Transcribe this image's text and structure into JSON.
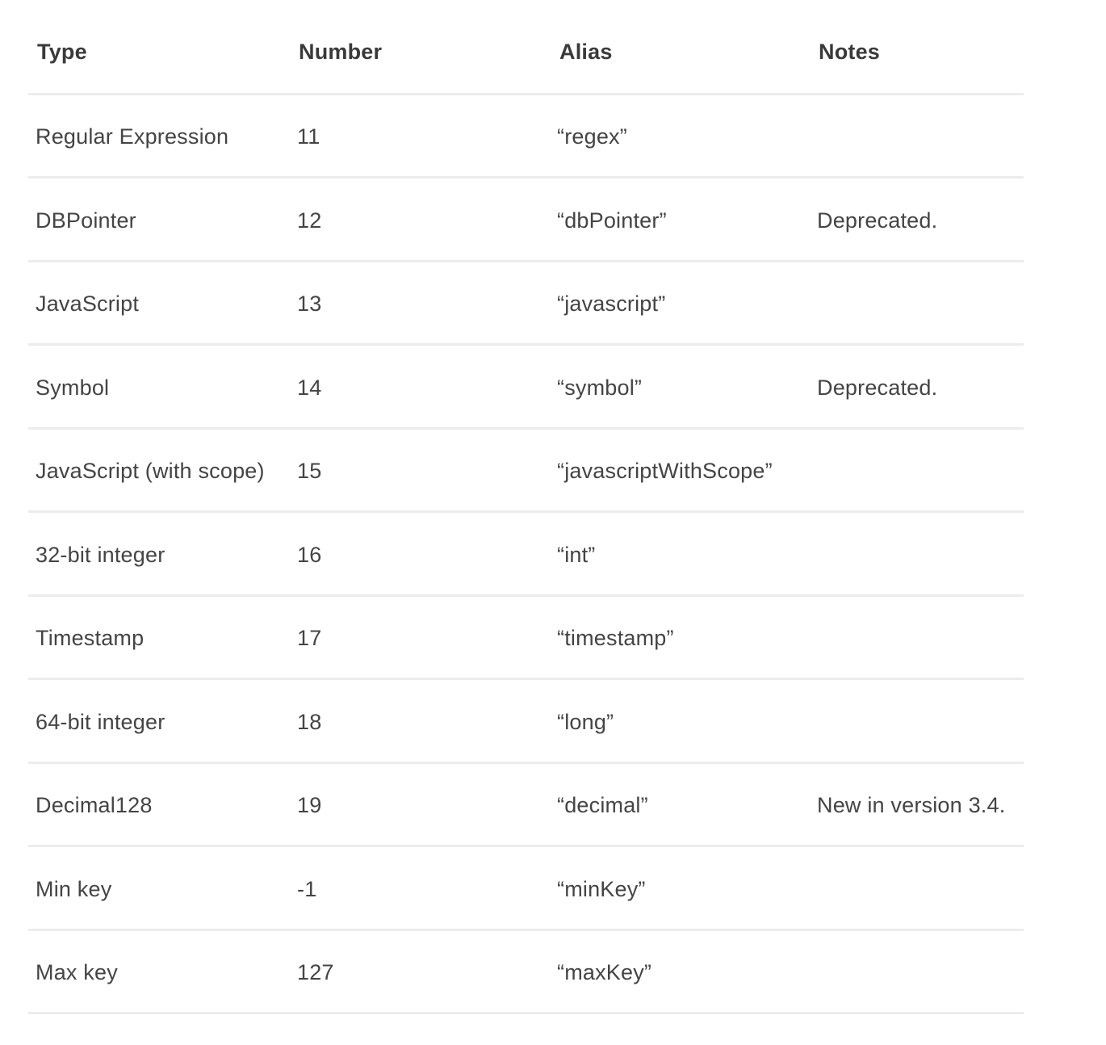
{
  "table": {
    "headers": {
      "type": "Type",
      "number": "Number",
      "alias": "Alias",
      "notes": "Notes"
    },
    "rows": [
      {
        "type": "Regular Expression",
        "number": "11",
        "alias": "“regex”",
        "notes": ""
      },
      {
        "type": "DBPointer",
        "number": "12",
        "alias": "“dbPointer”",
        "notes": "Deprecated."
      },
      {
        "type": "JavaScript",
        "number": "13",
        "alias": "“javascript”",
        "notes": ""
      },
      {
        "type": "Symbol",
        "number": "14",
        "alias": "“symbol”",
        "notes": "Deprecated."
      },
      {
        "type": "JavaScript (with scope)",
        "number": "15",
        "alias": "“javascriptWithScope”",
        "notes": ""
      },
      {
        "type": "32-bit integer",
        "number": "16",
        "alias": "“int”",
        "notes": ""
      },
      {
        "type": "Timestamp",
        "number": "17",
        "alias": "“timestamp”",
        "notes": ""
      },
      {
        "type": "64-bit integer",
        "number": "18",
        "alias": "“long”",
        "notes": ""
      },
      {
        "type": "Decimal128",
        "number": "19",
        "alias": "“decimal”",
        "notes": "New in version 3.4."
      },
      {
        "type": "Min key",
        "number": "-1",
        "alias": "“minKey”",
        "notes": ""
      },
      {
        "type": "Max key",
        "number": "127",
        "alias": "“maxKey”",
        "notes": ""
      }
    ]
  }
}
